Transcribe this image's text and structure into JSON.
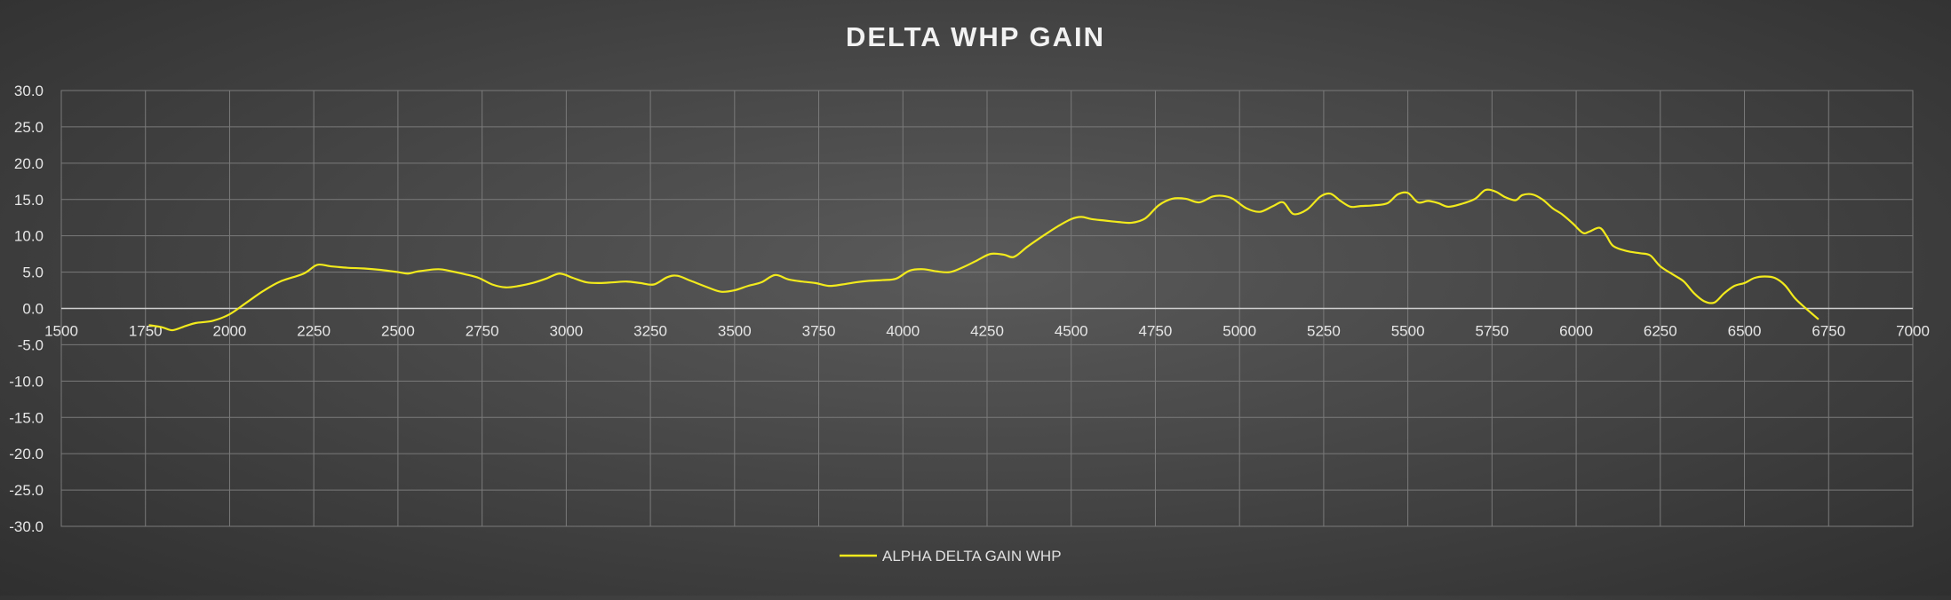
{
  "chart_data": {
    "type": "line",
    "title": "DELTA WHP GAIN",
    "xlabel": "",
    "ylabel": "",
    "xlim": [
      1500,
      7000
    ],
    "ylim": [
      -30,
      30
    ],
    "x_ticks": [
      "1500",
      "1750",
      "2000",
      "2250",
      "2500",
      "2750",
      "3000",
      "3250",
      "3500",
      "3750",
      "4000",
      "4250",
      "4500",
      "4750",
      "5000",
      "5250",
      "5500",
      "5750",
      "6000",
      "6250",
      "6500",
      "6750",
      "7000"
    ],
    "y_ticks": [
      "30.0",
      "25.0",
      "20.0",
      "15.0",
      "10.0",
      "5.0",
      "0.0",
      "-5.0",
      "-10.0",
      "-15.0",
      "-20.0",
      "-25.0",
      "-30.0"
    ],
    "grid": true,
    "legend_position": "bottom",
    "colors": {
      "line": "#f2ea1c",
      "grid": "#7a7a7a",
      "axis": "#cfcfcf"
    },
    "series": [
      {
        "name": "ALPHA DELTA GAIN WHP",
        "x": [
          1760,
          1800,
          1830,
          1870,
          1900,
          1950,
          2000,
          2050,
          2100,
          2150,
          2220,
          2260,
          2300,
          2350,
          2400,
          2450,
          2500,
          2530,
          2560,
          2620,
          2660,
          2700,
          2740,
          2780,
          2820,
          2860,
          2900,
          2940,
          2980,
          3020,
          3060,
          3100,
          3140,
          3180,
          3220,
          3260,
          3300,
          3330,
          3370,
          3420,
          3460,
          3500,
          3540,
          3580,
          3620,
          3660,
          3700,
          3740,
          3780,
          3820,
          3860,
          3900,
          3940,
          3980,
          4020,
          4060,
          4100,
          4140,
          4180,
          4220,
          4260,
          4300,
          4330,
          4370,
          4420,
          4460,
          4500,
          4530,
          4560,
          4600,
          4640,
          4680,
          4720,
          4760,
          4800,
          4840,
          4880,
          4920,
          4950,
          4980,
          5020,
          5060,
          5100,
          5130,
          5160,
          5200,
          5240,
          5270,
          5300,
          5330,
          5360,
          5400,
          5440,
          5470,
          5500,
          5530,
          5560,
          5590,
          5620,
          5660,
          5700,
          5730,
          5760,
          5790,
          5820,
          5840,
          5870,
          5900,
          5930,
          5960,
          5990,
          6020,
          6040,
          6070,
          6090,
          6110,
          6150,
          6190,
          6220,
          6250,
          6290,
          6320,
          6350,
          6380,
          6410,
          6440,
          6470,
          6500,
          6530,
          6560,
          6590,
          6620,
          6650,
          6680,
          6700,
          6720
        ],
        "values": [
          -2.3,
          -2.6,
          -3.0,
          -2.4,
          -2.0,
          -1.7,
          -0.8,
          0.8,
          2.4,
          3.7,
          4.8,
          6.0,
          5.8,
          5.6,
          5.5,
          5.3,
          5.0,
          4.8,
          5.1,
          5.4,
          5.1,
          4.7,
          4.2,
          3.3,
          2.9,
          3.1,
          3.5,
          4.1,
          4.8,
          4.2,
          3.6,
          3.5,
          3.6,
          3.7,
          3.5,
          3.3,
          4.3,
          4.5,
          3.8,
          2.9,
          2.3,
          2.5,
          3.1,
          3.6,
          4.6,
          4.0,
          3.7,
          3.5,
          3.1,
          3.3,
          3.6,
          3.8,
          3.9,
          4.1,
          5.2,
          5.4,
          5.1,
          5.0,
          5.7,
          6.6,
          7.5,
          7.4,
          7.1,
          8.5,
          10.1,
          11.3,
          12.3,
          12.6,
          12.3,
          12.1,
          11.9,
          11.8,
          12.4,
          14.2,
          15.1,
          15.1,
          14.6,
          15.4,
          15.5,
          15.1,
          13.8,
          13.3,
          14.1,
          14.6,
          13.0,
          13.6,
          15.4,
          15.8,
          14.8,
          14.0,
          14.1,
          14.2,
          14.5,
          15.7,
          15.9,
          14.6,
          14.8,
          14.5,
          14.0,
          14.4,
          15.1,
          16.3,
          16.1,
          15.3,
          14.9,
          15.6,
          15.7,
          15.0,
          13.8,
          12.9,
          11.7,
          10.4,
          10.6,
          11.1,
          10.0,
          8.6,
          7.9,
          7.6,
          7.3,
          5.8,
          4.6,
          3.7,
          2.1,
          1.0,
          0.8,
          2.1,
          3.1,
          3.5,
          4.2,
          4.4,
          4.2,
          3.2,
          1.4,
          0.1,
          -0.7,
          -1.5
        ]
      }
    ]
  }
}
